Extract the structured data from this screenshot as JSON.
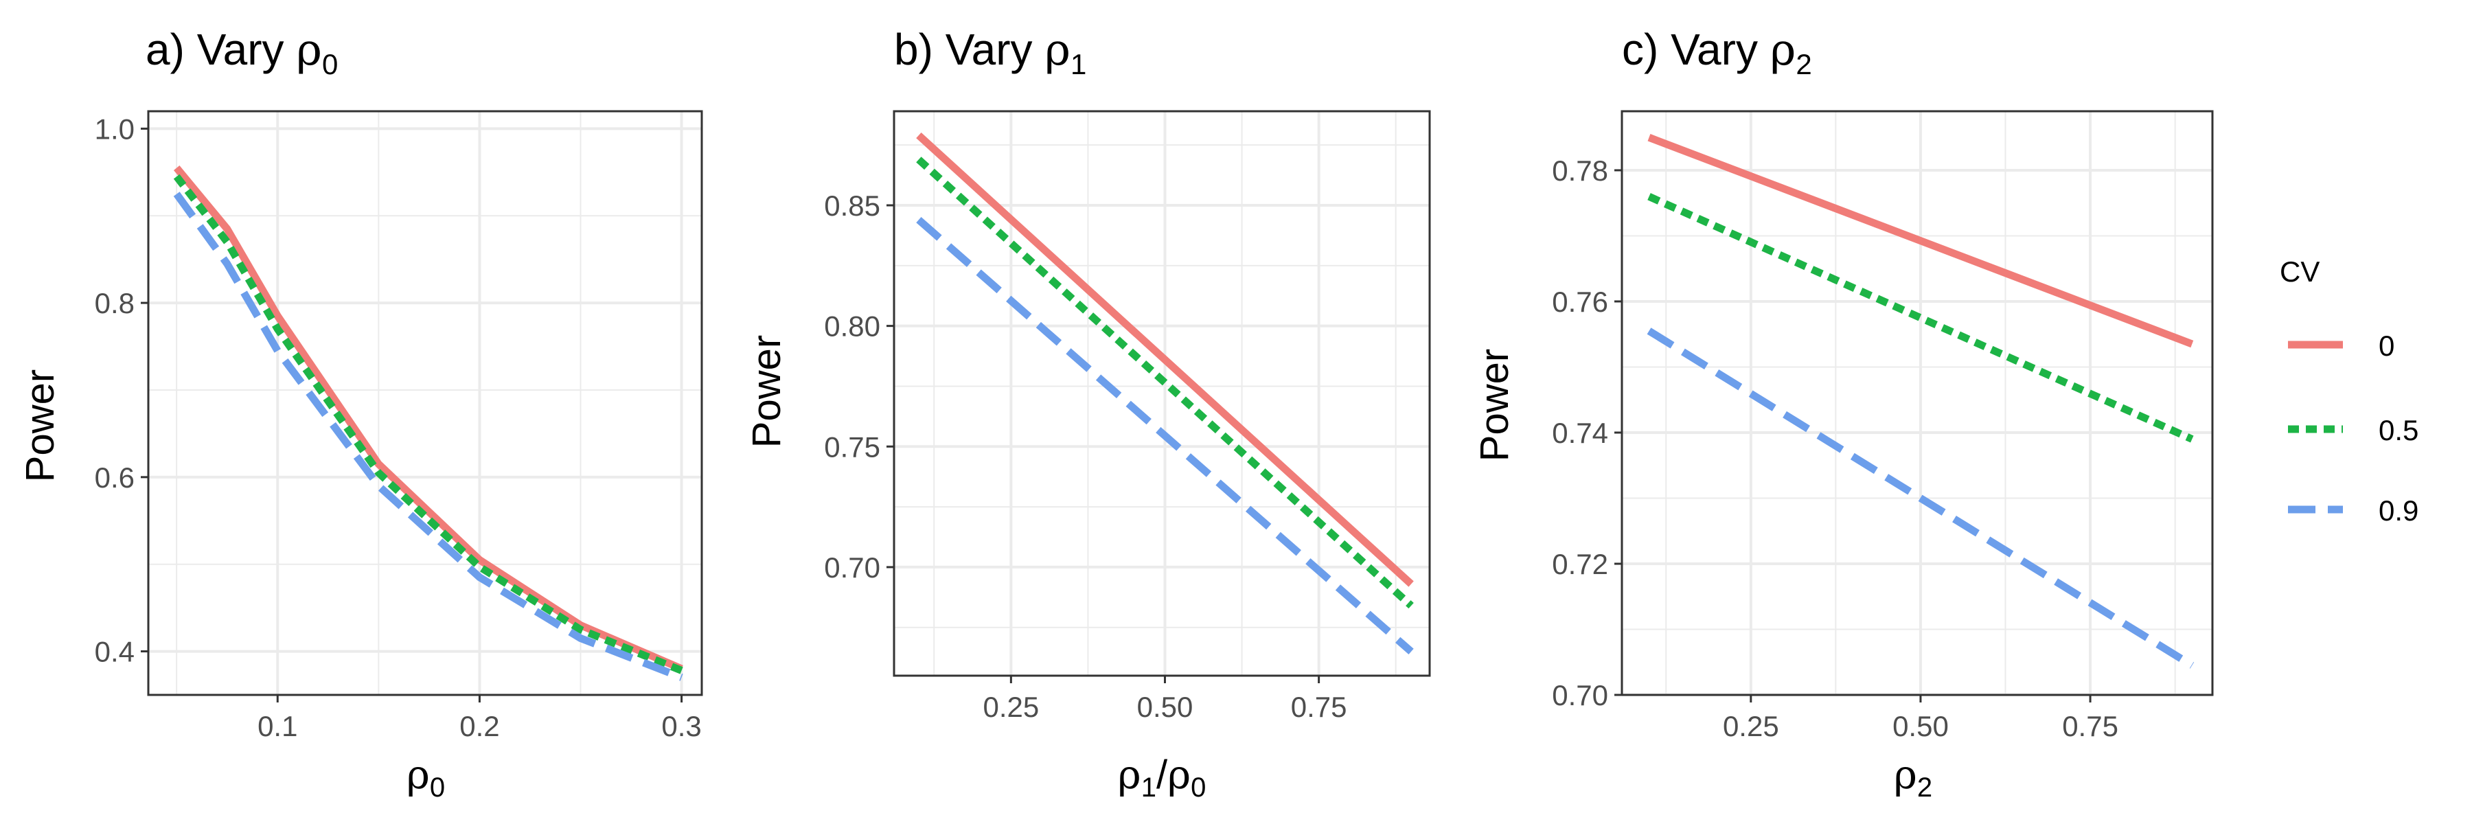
{
  "chart_data": [
    {
      "type": "line",
      "panel_label": "a) Vary ",
      "title_symbol": "ρ",
      "title_sub": "0",
      "xlabel_symbol": "ρ",
      "xlabel_sub": "0",
      "ylabel": "Power",
      "xlim": [
        0.036,
        0.31
      ],
      "ylim": [
        0.35,
        1.02
      ],
      "xticks": [
        0.1,
        0.2,
        0.3
      ],
      "xtick_labels": [
        "0.1",
        "0.2",
        "0.3"
      ],
      "yticks": [
        0.4,
        0.6,
        0.8,
        1.0
      ],
      "ytick_labels": [
        "0.4",
        "0.6",
        "0.8",
        "1.0"
      ],
      "x": [
        0.05,
        0.075,
        0.1,
        0.15,
        0.2,
        0.25,
        0.3
      ],
      "series": [
        {
          "name": "0",
          "values": [
            0.955,
            0.885,
            0.785,
            0.615,
            0.505,
            0.43,
            0.38
          ]
        },
        {
          "name": "0.5",
          "values": [
            0.945,
            0.87,
            0.77,
            0.605,
            0.497,
            0.425,
            0.378
          ]
        },
        {
          "name": "0.9",
          "values": [
            0.925,
            0.845,
            0.745,
            0.59,
            0.485,
            0.415,
            0.37
          ]
        }
      ]
    },
    {
      "type": "line",
      "panel_label": "b) Vary ",
      "title_symbol": "ρ",
      "title_sub": "1",
      "xlabel_symbol": "ρ",
      "xlabel_sub": "1",
      "xlabel_slash": "/",
      "xlabel_symbol2": "ρ",
      "xlabel_sub2": "0",
      "ylabel": "Power",
      "xlim": [
        0.06,
        0.93
      ],
      "ylim": [
        0.655,
        0.889
      ],
      "xticks": [
        0.25,
        0.5,
        0.75
      ],
      "xtick_labels": [
        "0.25",
        "0.50",
        "0.75"
      ],
      "yticks": [
        0.7,
        0.75,
        0.8,
        0.85
      ],
      "ytick_labels": [
        "0.70",
        "0.75",
        "0.80",
        "0.85"
      ],
      "x": [
        0.1,
        0.9
      ],
      "series": [
        {
          "name": "0",
          "values": [
            0.879,
            0.693
          ]
        },
        {
          "name": "0.5",
          "values": [
            0.869,
            0.684
          ]
        },
        {
          "name": "0.9",
          "values": [
            0.844,
            0.665
          ]
        }
      ]
    },
    {
      "type": "line",
      "panel_label": "c) Vary ",
      "title_symbol": "ρ",
      "title_sub": "2",
      "xlabel_symbol": "ρ",
      "xlabel_sub": "2",
      "ylabel": "Power",
      "xlim": [
        0.06,
        0.93
      ],
      "ylim": [
        0.7,
        0.789
      ],
      "xticks": [
        0.25,
        0.5,
        0.75
      ],
      "xtick_labels": [
        "0.25",
        "0.50",
        "0.75"
      ],
      "yticks": [
        0.7,
        0.72,
        0.74,
        0.76,
        0.78
      ],
      "ytick_labels": [
        "0.70",
        "0.72",
        "0.74",
        "0.76",
        "0.78"
      ],
      "x": [
        0.1,
        0.9
      ],
      "series": [
        {
          "name": "0",
          "values": [
            0.785,
            0.7535
          ]
        },
        {
          "name": "0.5",
          "values": [
            0.776,
            0.739
          ]
        },
        {
          "name": "0.9",
          "values": [
            0.7555,
            0.7045
          ]
        }
      ]
    }
  ],
  "legend": {
    "title": "CV",
    "position": "right",
    "items": [
      {
        "label": "0",
        "color": "#F07C78",
        "style": "solid"
      },
      {
        "label": "0.5",
        "color": "#1DB446",
        "style": "dotted"
      },
      {
        "label": "0.9",
        "color": "#6C9EEB",
        "style": "dashed"
      }
    ]
  },
  "colors": {
    "grid": "#EBEBEB",
    "axis_text": "#4D4D4D",
    "panel_border": "#333333"
  }
}
